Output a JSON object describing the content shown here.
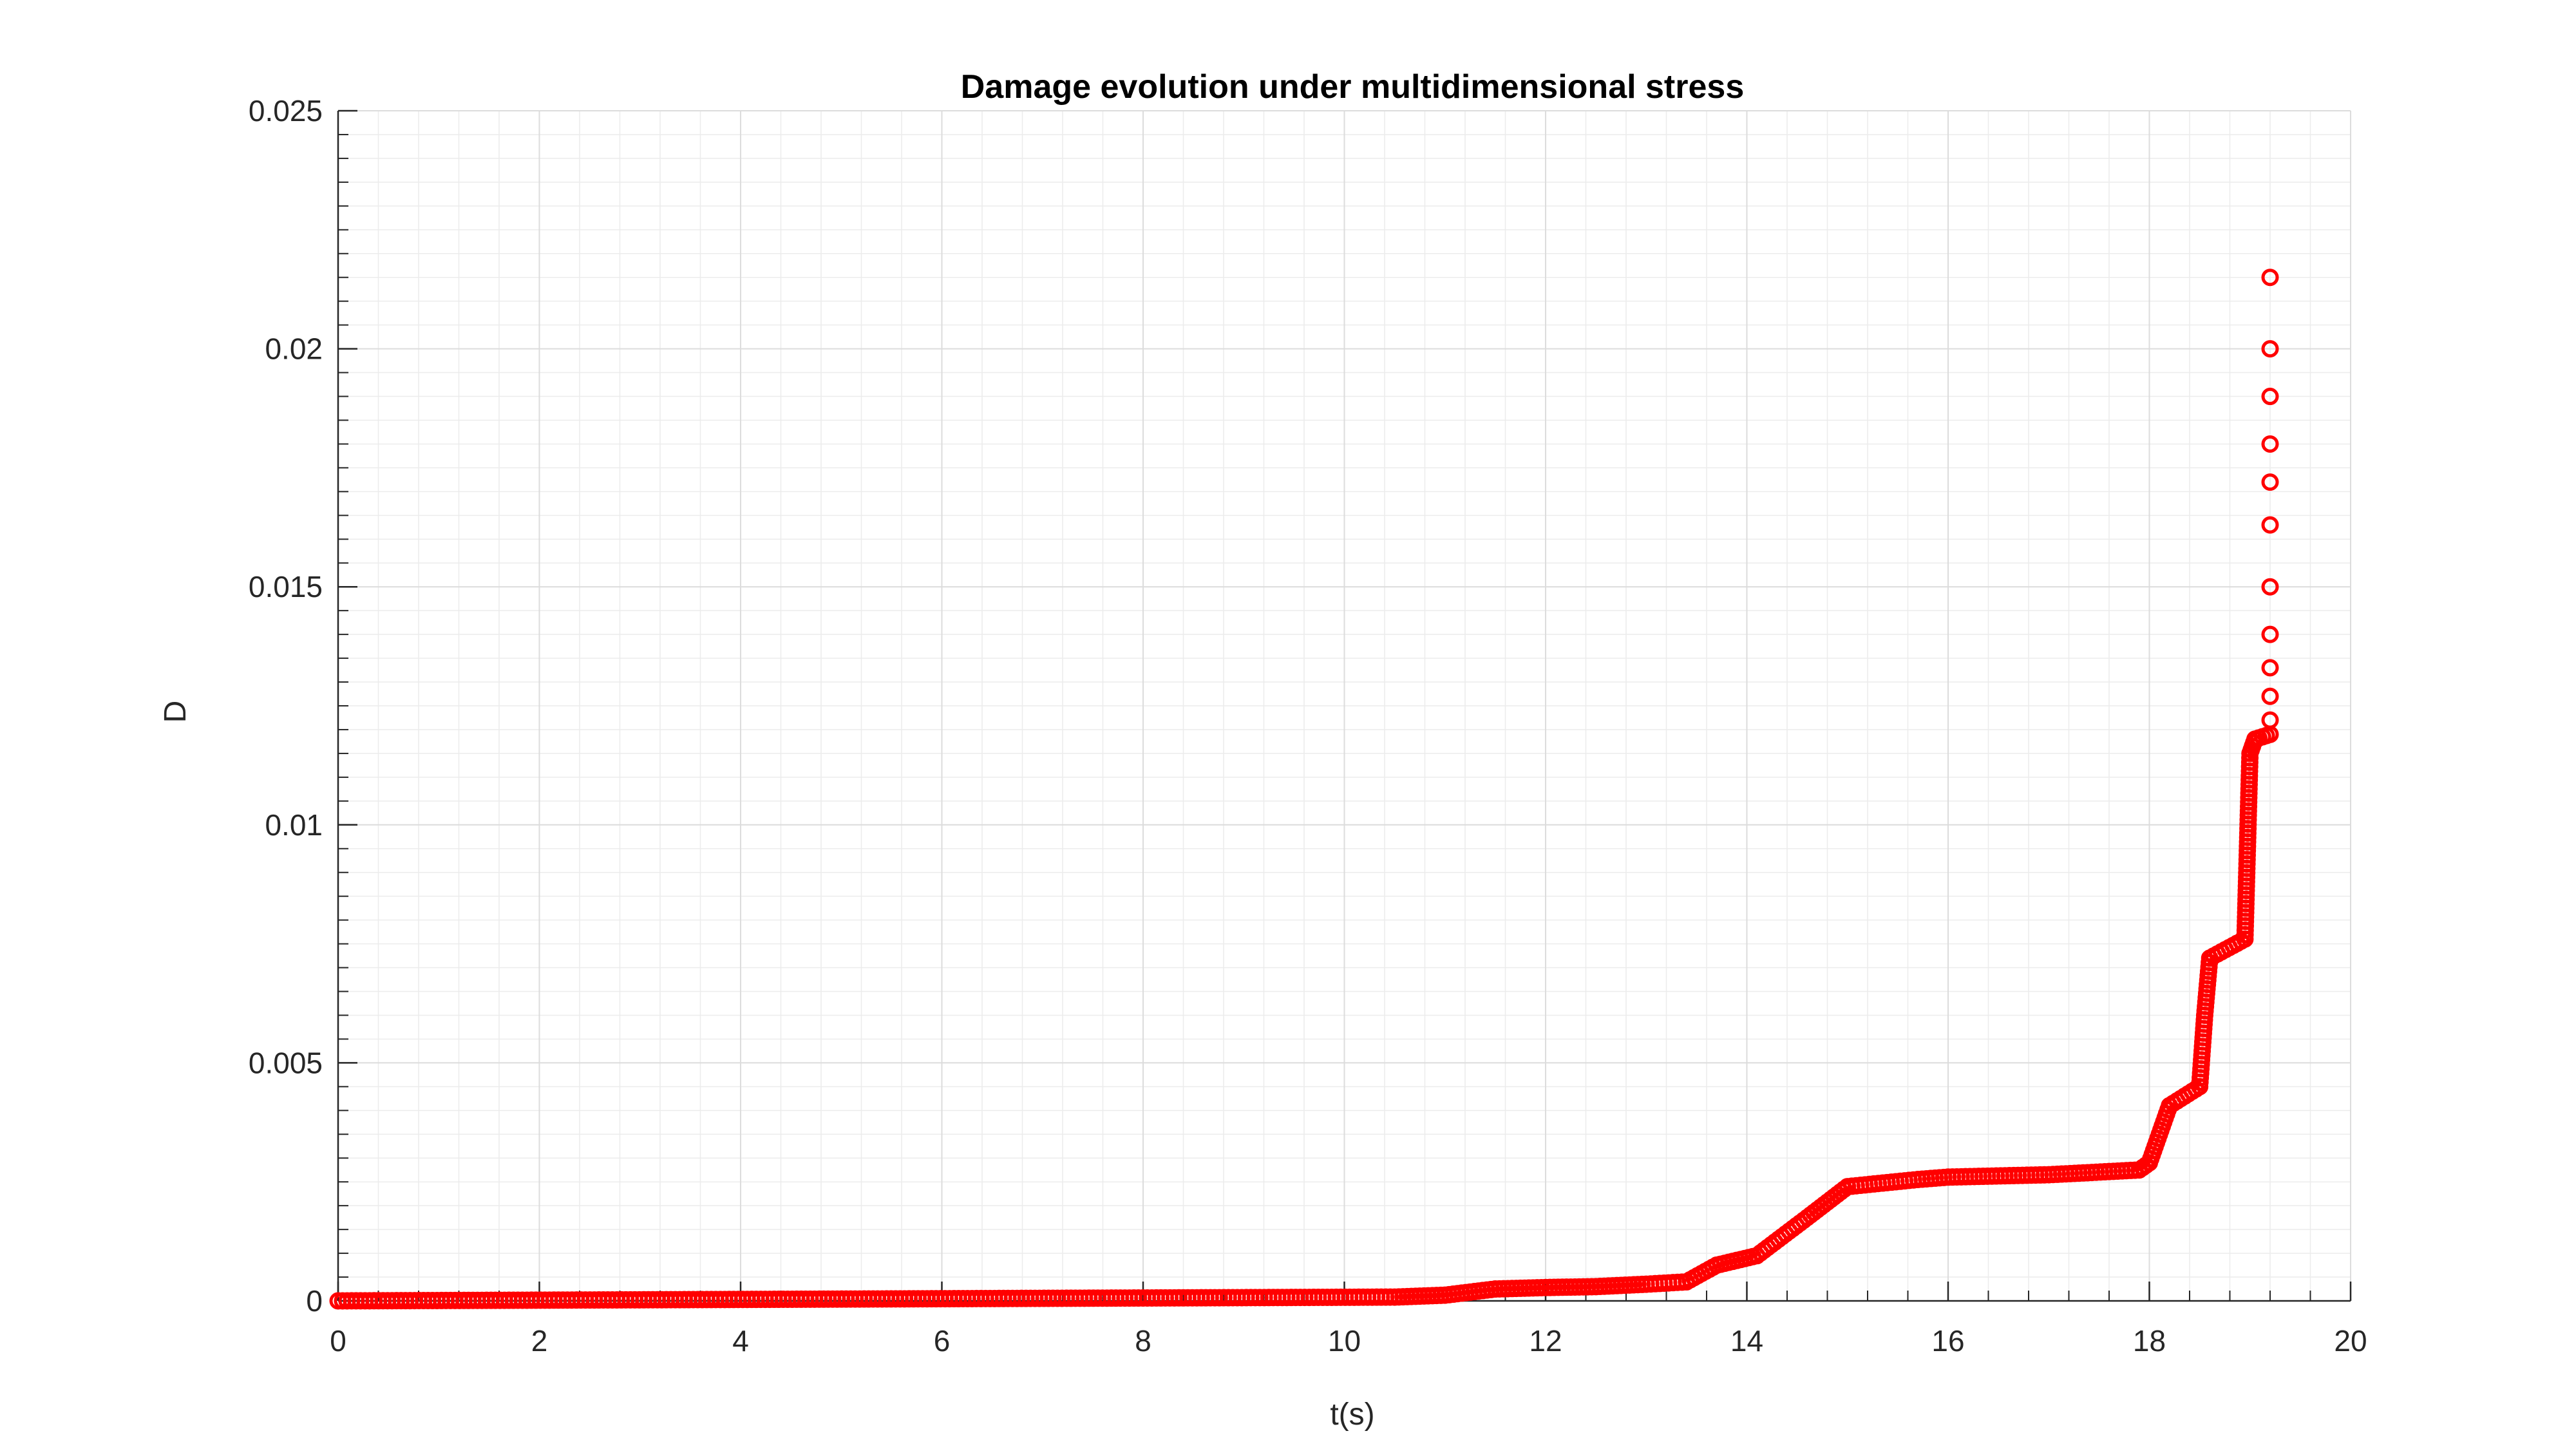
{
  "chart_data": {
    "type": "scatter",
    "title": "Damage evolution under multidimensional stress",
    "xlabel": "t(s)",
    "ylabel": "D",
    "xlim": [
      0,
      20
    ],
    "ylim": [
      0,
      0.025
    ],
    "xticks": [
      "0",
      "2",
      "4",
      "6",
      "8",
      "10",
      "12",
      "14",
      "16",
      "18",
      "20"
    ],
    "yticks": [
      "0",
      "0.005",
      "0.01",
      "0.015",
      "0.02",
      "0.025"
    ],
    "grid": true,
    "marker": "circle-open",
    "color": "#ff0000",
    "steps": [
      [
        0.0,
        0.0
      ],
      [
        10.5,
        8e-05
      ],
      [
        11.0,
        0.00012
      ],
      [
        11.5,
        0.00025
      ],
      [
        12.0,
        0.00028
      ],
      [
        12.5,
        0.0003
      ],
      [
        13.0,
        0.00035
      ],
      [
        13.4,
        0.0004
      ],
      [
        13.7,
        0.00075
      ],
      [
        14.1,
        0.00095
      ],
      [
        14.6,
        0.00175
      ],
      [
        15.0,
        0.0024
      ],
      [
        15.7,
        0.00255
      ],
      [
        16.0,
        0.0026
      ],
      [
        17.0,
        0.00265
      ],
      [
        17.9,
        0.00275
      ],
      [
        18.0,
        0.0029
      ],
      [
        18.1,
        0.0035
      ],
      [
        18.2,
        0.0041
      ],
      [
        18.5,
        0.0045
      ],
      [
        18.55,
        0.006
      ],
      [
        18.6,
        0.0072
      ],
      [
        18.95,
        0.0076
      ],
      [
        19.0,
        0.0115
      ],
      [
        19.05,
        0.0118
      ],
      [
        19.2,
        0.0119
      ]
    ],
    "outliers": [
      [
        19.2,
        0.0122
      ],
      [
        19.2,
        0.0127
      ],
      [
        19.2,
        0.0133
      ],
      [
        19.2,
        0.014
      ],
      [
        19.2,
        0.015
      ],
      [
        19.2,
        0.0163
      ],
      [
        19.2,
        0.0172
      ],
      [
        19.2,
        0.018
      ],
      [
        19.2,
        0.019
      ],
      [
        19.2,
        0.02
      ],
      [
        19.2,
        0.0215
      ]
    ]
  }
}
